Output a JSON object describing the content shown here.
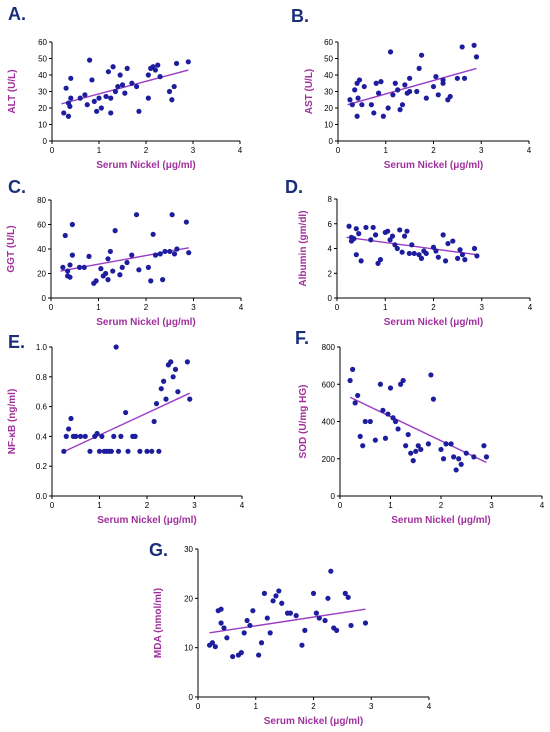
{
  "colors": {
    "point": "#1d1d9e",
    "fit_line": "#9b3cc4",
    "label": "#a0319c",
    "panel_letter": "#1a2f7a"
  },
  "chart_data": [
    {
      "id": "A",
      "letter": "A.",
      "type": "scatter",
      "xlabel": "Serum  Nickel (μg/ml)",
      "ylabel": "ALT (U/L)",
      "xlim": [
        0,
        4
      ],
      "ylim": [
        0,
        60
      ],
      "xticks": [
        0,
        1,
        2,
        3,
        4
      ],
      "yticks": [
        0,
        10,
        20,
        30,
        40,
        50,
        60
      ],
      "fit_line": [
        [
          0.2,
          22.5
        ],
        [
          2.9,
          43
        ]
      ],
      "points": [
        [
          0.25,
          17
        ],
        [
          0.3,
          32
        ],
        [
          0.35,
          15
        ],
        [
          0.35,
          23
        ],
        [
          0.38,
          21
        ],
        [
          0.4,
          26
        ],
        [
          0.4,
          38
        ],
        [
          0.6,
          26
        ],
        [
          0.7,
          28
        ],
        [
          0.75,
          22
        ],
        [
          0.8,
          49
        ],
        [
          0.85,
          37
        ],
        [
          0.9,
          24
        ],
        [
          0.95,
          18
        ],
        [
          1.0,
          26
        ],
        [
          1.05,
          20
        ],
        [
          1.15,
          27
        ],
        [
          1.2,
          42
        ],
        [
          1.25,
          17
        ],
        [
          1.25,
          26
        ],
        [
          1.3,
          45
        ],
        [
          1.35,
          30
        ],
        [
          1.4,
          33
        ],
        [
          1.45,
          40
        ],
        [
          1.5,
          34
        ],
        [
          1.55,
          29
        ],
        [
          1.6,
          44
        ],
        [
          1.7,
          35
        ],
        [
          1.8,
          33
        ],
        [
          1.85,
          18
        ],
        [
          2.05,
          26
        ],
        [
          2.05,
          40
        ],
        [
          2.1,
          44
        ],
        [
          2.15,
          45
        ],
        [
          2.2,
          43
        ],
        [
          2.25,
          46
        ],
        [
          2.3,
          39
        ],
        [
          2.5,
          30
        ],
        [
          2.6,
          33
        ],
        [
          2.65,
          47
        ],
        [
          2.9,
          48
        ],
        [
          2.55,
          25
        ]
      ]
    },
    {
      "id": "B",
      "letter": "B.",
      "type": "scatter",
      "xlabel": "Serum  Nickel (μg/ml)",
      "ylabel": "AST (U/L)",
      "xlim": [
        0,
        4
      ],
      "ylim": [
        0,
        60
      ],
      "xticks": [
        0,
        1,
        2,
        3,
        4
      ],
      "yticks": [
        0,
        10,
        20,
        30,
        40,
        50,
        60
      ],
      "fit_line": [
        [
          0.2,
          22
        ],
        [
          2.9,
          44
        ]
      ],
      "points": [
        [
          0.25,
          25
        ],
        [
          0.3,
          22
        ],
        [
          0.35,
          31
        ],
        [
          0.4,
          35
        ],
        [
          0.4,
          15
        ],
        [
          0.42,
          26
        ],
        [
          0.45,
          37
        ],
        [
          0.5,
          22
        ],
        [
          0.55,
          33
        ],
        [
          0.7,
          22
        ],
        [
          0.75,
          17
        ],
        [
          0.8,
          35
        ],
        [
          0.85,
          29
        ],
        [
          0.9,
          36
        ],
        [
          0.95,
          15
        ],
        [
          1.05,
          20
        ],
        [
          1.1,
          54
        ],
        [
          1.15,
          28
        ],
        [
          1.2,
          35
        ],
        [
          1.25,
          31
        ],
        [
          1.3,
          19
        ],
        [
          1.35,
          22
        ],
        [
          1.4,
          34
        ],
        [
          1.45,
          29
        ],
        [
          1.5,
          38
        ],
        [
          1.65,
          30
        ],
        [
          1.7,
          44
        ],
        [
          1.75,
          52
        ],
        [
          1.85,
          26
        ],
        [
          2.0,
          33
        ],
        [
          2.05,
          39
        ],
        [
          2.1,
          28
        ],
        [
          2.2,
          37
        ],
        [
          2.3,
          25
        ],
        [
          2.35,
          27
        ],
        [
          2.5,
          38
        ],
        [
          2.6,
          57
        ],
        [
          2.65,
          38
        ],
        [
          2.85,
          58
        ],
        [
          2.9,
          51
        ],
        [
          2.2,
          35
        ],
        [
          1.5,
          30
        ]
      ]
    },
    {
      "id": "C",
      "letter": "C.",
      "type": "scatter",
      "xlabel": "Serum  Nickel (μg/ml)",
      "ylabel": "GGT (U/L)",
      "xlim": [
        0,
        4
      ],
      "ylim": [
        0,
        80
      ],
      "xticks": [
        0,
        1,
        2,
        3,
        4
      ],
      "yticks": [
        0,
        20,
        40,
        60,
        80
      ],
      "fit_line": [
        [
          0.2,
          22
        ],
        [
          2.9,
          41
        ]
      ],
      "points": [
        [
          0.25,
          25
        ],
        [
          0.3,
          51
        ],
        [
          0.35,
          18
        ],
        [
          0.35,
          22
        ],
        [
          0.4,
          17
        ],
        [
          0.4,
          27
        ],
        [
          0.45,
          60
        ],
        [
          0.45,
          35
        ],
        [
          0.6,
          25
        ],
        [
          0.7,
          25
        ],
        [
          0.8,
          34
        ],
        [
          0.9,
          12
        ],
        [
          0.95,
          14
        ],
        [
          1.05,
          24
        ],
        [
          1.1,
          18
        ],
        [
          1.15,
          20
        ],
        [
          1.2,
          15
        ],
        [
          1.2,
          32
        ],
        [
          1.25,
          38
        ],
        [
          1.3,
          22
        ],
        [
          1.35,
          55
        ],
        [
          1.45,
          19
        ],
        [
          1.5,
          25
        ],
        [
          1.6,
          29
        ],
        [
          1.7,
          35
        ],
        [
          1.8,
          68
        ],
        [
          1.85,
          23
        ],
        [
          2.05,
          25
        ],
        [
          2.1,
          14
        ],
        [
          2.15,
          52
        ],
        [
          2.2,
          35
        ],
        [
          2.3,
          36
        ],
        [
          2.35,
          15
        ],
        [
          2.5,
          38
        ],
        [
          2.6,
          36
        ],
        [
          2.65,
          40
        ],
        [
          2.85,
          62
        ],
        [
          2.9,
          37
        ],
        [
          2.55,
          68
        ],
        [
          2.4,
          38
        ]
      ]
    },
    {
      "id": "D",
      "letter": "D.",
      "type": "scatter",
      "xlabel": "Serum  Nickel (μg/ml)",
      "ylabel": "Albumin (gm/dl)",
      "xlim": [
        0,
        4
      ],
      "ylim": [
        0,
        8
      ],
      "xticks": [
        0,
        1,
        2,
        3,
        4
      ],
      "yticks": [
        0,
        2,
        4,
        6,
        8
      ],
      "fit_line": [
        [
          0.2,
          4.9
        ],
        [
          2.9,
          3.5
        ]
      ],
      "points": [
        [
          0.25,
          5.8
        ],
        [
          0.3,
          4.6
        ],
        [
          0.3,
          4.9
        ],
        [
          0.35,
          4.8
        ],
        [
          0.4,
          5.6
        ],
        [
          0.4,
          3.5
        ],
        [
          0.45,
          5.2
        ],
        [
          0.5,
          3.0
        ],
        [
          0.6,
          5.7
        ],
        [
          0.7,
          4.7
        ],
        [
          0.75,
          5.7
        ],
        [
          0.8,
          5.1
        ],
        [
          0.85,
          2.8
        ],
        [
          0.9,
          3.1
        ],
        [
          1.0,
          5.3
        ],
        [
          1.05,
          5.4
        ],
        [
          1.1,
          4.7
        ],
        [
          1.15,
          5.0
        ],
        [
          1.2,
          4.3
        ],
        [
          1.25,
          4.0
        ],
        [
          1.3,
          5.5
        ],
        [
          1.35,
          3.7
        ],
        [
          1.4,
          5.0
        ],
        [
          1.45,
          5.4
        ],
        [
          1.5,
          3.6
        ],
        [
          1.55,
          4.3
        ],
        [
          1.6,
          3.6
        ],
        [
          1.7,
          3.5
        ],
        [
          1.75,
          3.2
        ],
        [
          1.8,
          3.8
        ],
        [
          1.85,
          3.6
        ],
        [
          2.0,
          4.1
        ],
        [
          2.05,
          3.8
        ],
        [
          2.1,
          3.3
        ],
        [
          2.2,
          5.1
        ],
        [
          2.25,
          3.0
        ],
        [
          2.3,
          4.4
        ],
        [
          2.4,
          4.6
        ],
        [
          2.5,
          3.2
        ],
        [
          2.6,
          3.5
        ],
        [
          2.65,
          3.1
        ],
        [
          2.9,
          3.4
        ],
        [
          2.85,
          4.0
        ],
        [
          2.55,
          3.9
        ]
      ]
    },
    {
      "id": "E",
      "letter": "E.",
      "type": "scatter",
      "xlabel": "Serum Nickel (μg/ml)",
      "ylabel": "NF-κB (ng/ml)",
      "xlim": [
        0,
        4
      ],
      "ylim": [
        0,
        1.0
      ],
      "xticks": [
        0,
        1,
        2,
        3,
        4
      ],
      "yticks": [
        0,
        0.2,
        0.4,
        0.6,
        0.8,
        1.0
      ],
      "ytick_labels": [
        "0.0",
        "0.2",
        "0.4",
        "0.6",
        "0.8",
        "1.0"
      ],
      "fit_line": [
        [
          0.2,
          0.29
        ],
        [
          2.9,
          0.69
        ]
      ],
      "points": [
        [
          0.25,
          0.3
        ],
        [
          0.3,
          0.4
        ],
        [
          0.35,
          0.45
        ],
        [
          0.4,
          0.52
        ],
        [
          0.45,
          0.4
        ],
        [
          0.5,
          0.4
        ],
        [
          0.6,
          0.4
        ],
        [
          0.7,
          0.4
        ],
        [
          0.8,
          0.3
        ],
        [
          0.9,
          0.4
        ],
        [
          0.95,
          0.42
        ],
        [
          1.0,
          0.3
        ],
        [
          1.05,
          0.4
        ],
        [
          1.1,
          0.3
        ],
        [
          1.15,
          0.3
        ],
        [
          1.2,
          0.3
        ],
        [
          1.25,
          0.3
        ],
        [
          1.3,
          0.4
        ],
        [
          1.35,
          1.0
        ],
        [
          1.4,
          0.3
        ],
        [
          1.45,
          0.4
        ],
        [
          1.55,
          0.56
        ],
        [
          1.6,
          0.3
        ],
        [
          1.7,
          0.4
        ],
        [
          1.75,
          0.4
        ],
        [
          1.85,
          0.3
        ],
        [
          2.1,
          0.3
        ],
        [
          2.15,
          0.5
        ],
        [
          2.2,
          0.62
        ],
        [
          2.25,
          0.3
        ],
        [
          2.3,
          0.72
        ],
        [
          2.35,
          0.77
        ],
        [
          2.4,
          0.65
        ],
        [
          2.5,
          0.9
        ],
        [
          2.55,
          0.8
        ],
        [
          2.6,
          0.85
        ],
        [
          2.65,
          0.7
        ],
        [
          2.85,
          0.9
        ],
        [
          2.9,
          0.65
        ],
        [
          2.45,
          0.88
        ],
        [
          2.0,
          0.3
        ]
      ]
    },
    {
      "id": "F",
      "letter": "F.",
      "type": "scatter",
      "xlabel": "Serum Nickel (μg/ml)",
      "ylabel": "SOD (U/mg HG)",
      "xlim": [
        0,
        4
      ],
      "ylim": [
        0,
        800
      ],
      "xticks": [
        0,
        1,
        2,
        3,
        4
      ],
      "yticks": [
        0,
        200,
        400,
        600,
        800
      ],
      "fit_line": [
        [
          0.2,
          530
        ],
        [
          2.9,
          180
        ]
      ],
      "points": [
        [
          0.2,
          620
        ],
        [
          0.25,
          680
        ],
        [
          0.3,
          500
        ],
        [
          0.35,
          540
        ],
        [
          0.4,
          320
        ],
        [
          0.45,
          270
        ],
        [
          0.5,
          400
        ],
        [
          0.6,
          400
        ],
        [
          0.7,
          300
        ],
        [
          0.8,
          600
        ],
        [
          0.85,
          460
        ],
        [
          0.9,
          310
        ],
        [
          1.0,
          580
        ],
        [
          1.05,
          420
        ],
        [
          1.1,
          400
        ],
        [
          1.15,
          360
        ],
        [
          1.2,
          600
        ],
        [
          1.25,
          620
        ],
        [
          1.3,
          270
        ],
        [
          1.35,
          330
        ],
        [
          1.4,
          230
        ],
        [
          1.45,
          190
        ],
        [
          1.5,
          240
        ],
        [
          1.55,
          270
        ],
        [
          1.6,
          250
        ],
        [
          1.75,
          280
        ],
        [
          1.8,
          650
        ],
        [
          1.85,
          520
        ],
        [
          2.0,
          250
        ],
        [
          2.05,
          200
        ],
        [
          2.1,
          280
        ],
        [
          2.2,
          280
        ],
        [
          2.25,
          210
        ],
        [
          2.3,
          140
        ],
        [
          2.35,
          200
        ],
        [
          2.4,
          170
        ],
        [
          2.5,
          230
        ],
        [
          2.65,
          210
        ],
        [
          2.85,
          270
        ],
        [
          2.9,
          210
        ],
        [
          0.95,
          440
        ]
      ]
    },
    {
      "id": "G",
      "letter": "G.",
      "type": "scatter",
      "xlabel": "Serum Nickel (μg/ml)",
      "ylabel": "MDA (nmol/ml)",
      "xlim": [
        0,
        4
      ],
      "ylim": [
        0,
        30
      ],
      "xticks": [
        0,
        1,
        2,
        3,
        4
      ],
      "yticks": [
        0,
        10,
        20,
        30
      ],
      "fit_line": [
        [
          0.2,
          13
        ],
        [
          2.9,
          17.8
        ]
      ],
      "points": [
        [
          0.2,
          10.5
        ],
        [
          0.25,
          11
        ],
        [
          0.3,
          10.2
        ],
        [
          0.35,
          17.5
        ],
        [
          0.4,
          17.8
        ],
        [
          0.4,
          15
        ],
        [
          0.45,
          14
        ],
        [
          0.5,
          12
        ],
        [
          0.6,
          8.2
        ],
        [
          0.7,
          8.5
        ],
        [
          0.75,
          9
        ],
        [
          0.8,
          13
        ],
        [
          0.85,
          15.5
        ],
        [
          0.9,
          14.5
        ],
        [
          0.95,
          17.5
        ],
        [
          1.05,
          8.5
        ],
        [
          1.1,
          11
        ],
        [
          1.15,
          21
        ],
        [
          1.2,
          16
        ],
        [
          1.25,
          13
        ],
        [
          1.3,
          19.5
        ],
        [
          1.35,
          20.5
        ],
        [
          1.4,
          21.5
        ],
        [
          1.45,
          19
        ],
        [
          1.55,
          17
        ],
        [
          1.6,
          17
        ],
        [
          1.7,
          16.5
        ],
        [
          1.8,
          10.5
        ],
        [
          1.85,
          13.5
        ],
        [
          2.0,
          21
        ],
        [
          2.05,
          17
        ],
        [
          2.1,
          16
        ],
        [
          2.2,
          15.5
        ],
        [
          2.3,
          25.5
        ],
        [
          2.35,
          14
        ],
        [
          2.4,
          13.5
        ],
        [
          2.55,
          21
        ],
        [
          2.6,
          20.2
        ],
        [
          2.65,
          14.5
        ],
        [
          2.9,
          15
        ],
        [
          2.25,
          20
        ]
      ]
    }
  ]
}
